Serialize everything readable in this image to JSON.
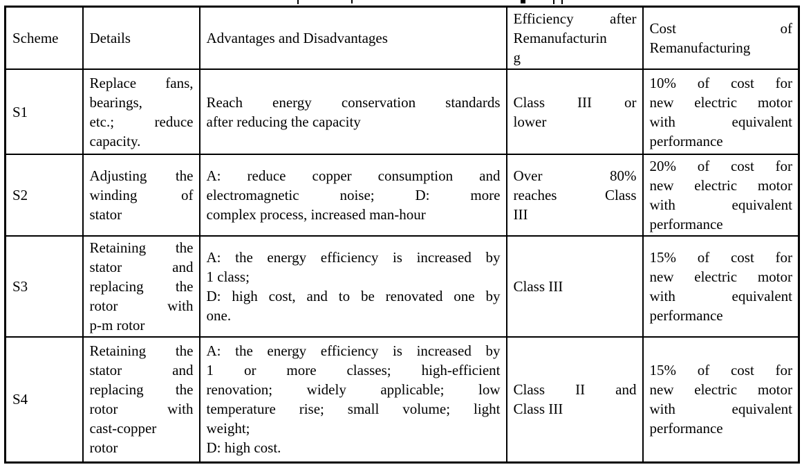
{
  "colors": {
    "background": "#ffffff",
    "border": "#000000",
    "text": "#000000"
  },
  "artifacts": {
    "cropped_caption_above_table": true
  },
  "table": {
    "header": {
      "scheme": [
        "Scheme"
      ],
      "details": [
        "Details"
      ],
      "advantages": [
        "Advantages and Disadvantages"
      ],
      "efficiency": [
        "Efficiency after",
        "Remanufacturin",
        "g"
      ],
      "cost": [
        "Cost of",
        "Remanufacturing"
      ]
    },
    "rows": [
      {
        "scheme": [
          "S1"
        ],
        "details": [
          "Replace fans,",
          "bearings,",
          "etc.; reduce",
          "capacity."
        ],
        "advantages": [
          "Reach energy conservation standards",
          "after reducing the capacity"
        ],
        "efficiency": [
          "Class III or",
          "lower"
        ],
        "cost": [
          "10% of cost for",
          "new electric motor",
          "with equivalent",
          "performance"
        ]
      },
      {
        "scheme": [
          "S2"
        ],
        "details": [
          "Adjusting the",
          "winding of",
          "stator"
        ],
        "advantages": [
          "A: reduce copper consumption and",
          "electromagnetic noise; D: more",
          "complex process, increased man-hour"
        ],
        "efficiency": [
          "Over 80%",
          "reaches Class",
          "III"
        ],
        "cost": [
          "20% of cost for",
          "new electric motor",
          "with equivalent",
          "performance"
        ]
      },
      {
        "scheme": [
          "S3"
        ],
        "details": [
          "Retaining the",
          "stator and",
          "replacing the",
          "rotor with",
          "p-m rotor"
        ],
        "advantages": [
          "A: the energy efficiency is increased by",
          "1 class;",
          "D: high cost, and to be renovated one by",
          "one."
        ],
        "efficiency": [
          "Class III"
        ],
        "cost": [
          "15% of cost for",
          "new electric motor",
          "with equivalent",
          "performance"
        ]
      },
      {
        "scheme": [
          "S4"
        ],
        "details": [
          "Retaining the",
          "stator and",
          "replacing the",
          "rotor with",
          "cast-copper",
          "rotor"
        ],
        "advantages": [
          "A: the energy efficiency is increased by",
          "1 or more classes; high-efficient",
          "renovation; widely applicable; low",
          "temperature rise; small volume; light",
          "weight;",
          "D: high cost."
        ],
        "efficiency": [
          "Class II and",
          "Class III"
        ],
        "cost": [
          "15% of cost for",
          "new electric motor",
          "with equivalent",
          "performance"
        ]
      }
    ]
  }
}
